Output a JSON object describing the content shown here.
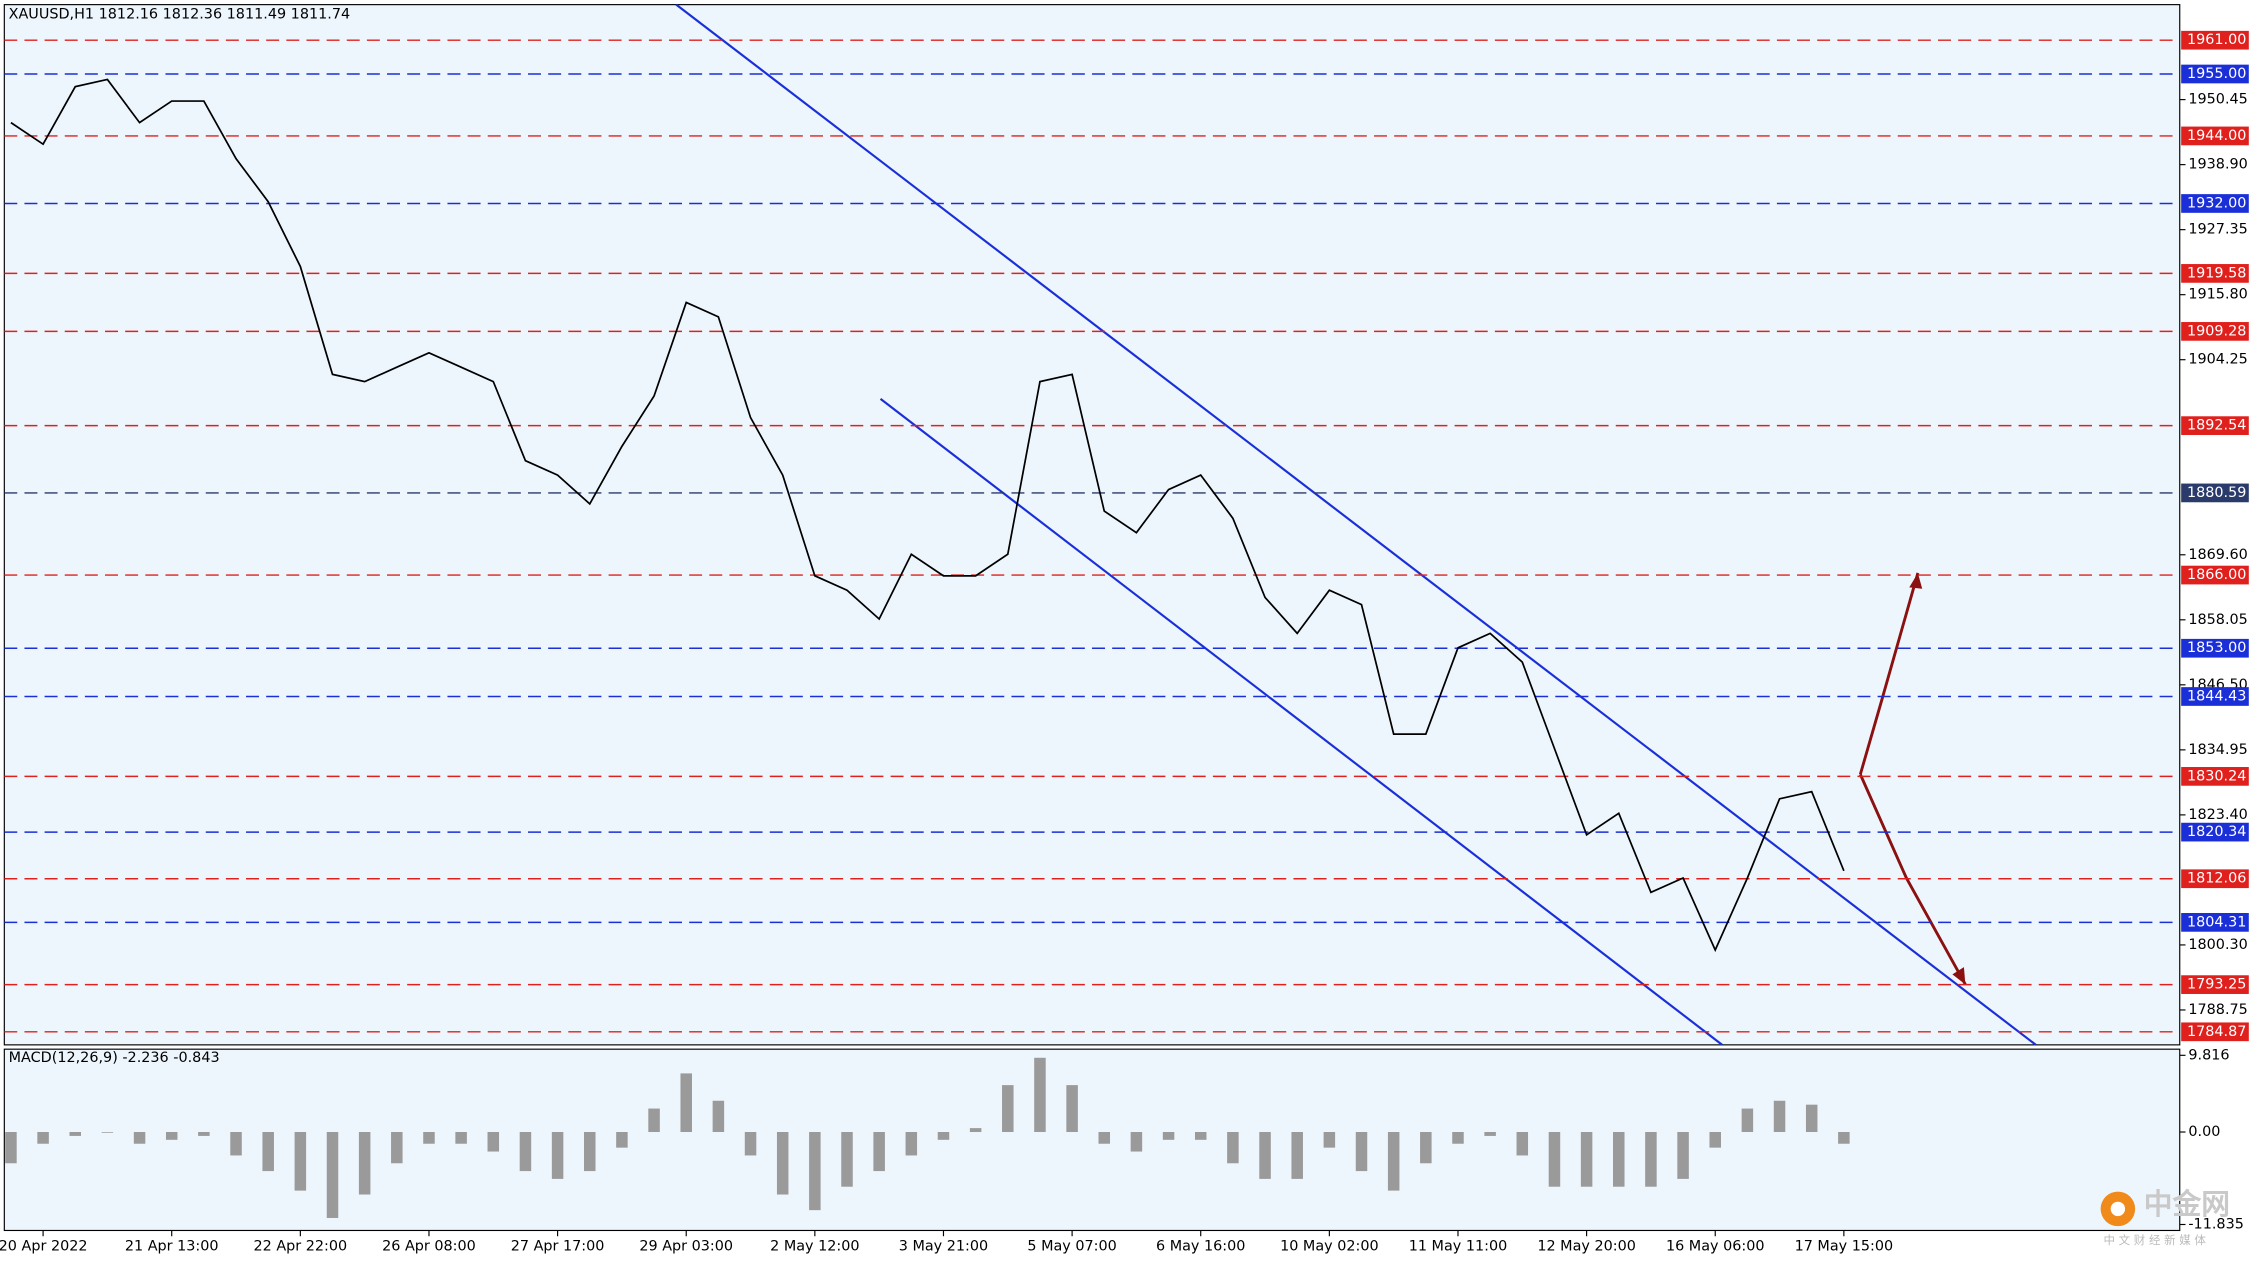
{
  "chart_data": [
    {
      "type": "line",
      "title": "XAUUSD,H1  1812.16 1812.36 1811.49 1811.74",
      "color": "#000000",
      "categories": [
        null,
        "20 Apr 2022",
        null,
        null,
        null,
        "21 Apr 13:00",
        null,
        null,
        null,
        "22 Apr 22:00",
        null,
        null,
        null,
        "26 Apr 08:00",
        null,
        null,
        null,
        "27 Apr 17:00",
        null,
        null,
        null,
        "29 Apr 03:00",
        null,
        null,
        null,
        "2 May 12:00",
        null,
        null,
        null,
        "3 May 21:00",
        null,
        null,
        null,
        "5 May 07:00",
        null,
        null,
        null,
        "6 May 16:00",
        null,
        null,
        null,
        "10 May 02:00",
        null,
        null,
        null,
        "11 May 11:00",
        null,
        null,
        null,
        "12 May 20:00",
        null,
        null,
        null,
        "16 May 06:00",
        null,
        null,
        null,
        "17 May 15:00"
      ],
      "values": [
        1946.36,
        1942.53,
        1952.75,
        1954.03,
        1946.36,
        1950.19,
        1950.19,
        1939.97,
        1932.31,
        1920.81,
        1901.64,
        1900.36,
        1902.92,
        1905.47,
        1902.92,
        1900.36,
        1886.31,
        1883.75,
        1878.64,
        1888.86,
        1897.8,
        1914.42,
        1911.86,
        1893.97,
        1883.75,
        1865.86,
        1863.31,
        1858.19,
        1869.69,
        1865.86,
        1865.86,
        1869.69,
        1900.36,
        1901.64,
        1877.36,
        1873.53,
        1881.19,
        1883.75,
        1876.08,
        1862.03,
        1855.64,
        1863.31,
        1860.75,
        1837.75,
        1837.75,
        1853.08,
        1855.64,
        1850.53,
        1835.19,
        1819.86,
        1823.69,
        1809.64,
        1812.19,
        1799.41,
        1812.19,
        1826.25,
        1827.53,
        1813.47
      ],
      "ylim": [
        1782.55,
        1967.32
      ],
      "yticks": [
        1950.45,
        {
          "value": 1938.9,
          "label": "1938.90"
        },
        1927.35,
        {
          "value": 1915.8,
          "label": "1915.80"
        },
        1904.25,
        {
          "value": 1869.6,
          "label": "1869.60"
        },
        1858.05,
        {
          "value": 1846.5,
          "label": "1846.50"
        },
        1834.95,
        {
          "value": 1823.4,
          "label": "1823.40"
        },
        {
          "value": 1800.3,
          "label": "1800.30"
        },
        1788.75
      ],
      "levels": [
        {
          "value": 1961,
          "label": "1961.00",
          "color": "#e0201c"
        },
        {
          "value": 1955,
          "label": "1955.00",
          "color": "#1a2fd8"
        },
        {
          "value": 1944,
          "label": "1944.00",
          "color": "#e0201c"
        },
        {
          "value": 1932,
          "label": "1932.00",
          "color": "#1a2fd8"
        },
        {
          "value": 1919.58,
          "label": "1919.58",
          "color": "#e0201c"
        },
        {
          "value": 1909.28,
          "label": "1909.28",
          "color": "#e0201c"
        },
        {
          "value": 1892.54,
          "label": "1892.54",
          "color": "#e0201c"
        },
        {
          "value": 1880.59,
          "label": "1880.59",
          "color": "#2a3a6a"
        },
        {
          "value": 1866,
          "label": "1866.00",
          "color": "#e0201c"
        },
        {
          "value": 1853,
          "label": "1853.00",
          "color": "#1a2fd8"
        },
        {
          "value": 1844.43,
          "label": "1844.43",
          "color": "#1a2fd8"
        },
        {
          "value": 1830.24,
          "label": "1830.24",
          "color": "#e0201c"
        },
        {
          "value": 1820.34,
          "label": "1820.34",
          "color": "#1a2fd8"
        },
        {
          "value": 1812.06,
          "label": "1812.06",
          "color": "#e0201c"
        },
        {
          "value": 1804.31,
          "label": "1804.31",
          "color": "#1a2fd8"
        },
        {
          "value": 1793.25,
          "label": "1793.25",
          "color": "#e0201c"
        },
        {
          "value": 1784.87,
          "label": "1784.87",
          "color": "#e0201c"
        }
      ]
    },
    {
      "type": "bar",
      "title": "MACD(12,26,9) -2.236 -0.843",
      "color": "#9a9a9a",
      "values": [
        -4,
        -1.5,
        -0.5,
        0,
        -1.5,
        -1,
        -0.5,
        -3,
        -5,
        -7.5,
        -11,
        -8,
        -4,
        -1.5,
        -1.5,
        -2.5,
        -5,
        -6,
        -5,
        -2,
        3,
        7.5,
        4,
        -3,
        -8,
        -10,
        -7,
        -5,
        -3,
        -1,
        0.5,
        6,
        9.5,
        6,
        -1.5,
        -2.5,
        -1,
        -1,
        -4,
        -6,
        -6,
        -2,
        -5,
        -7.5,
        -4,
        -1.5,
        -0.5,
        -3,
        -7,
        -7,
        -7,
        -7,
        -6,
        -2,
        3,
        4,
        3.5,
        -1.5
      ],
      "ylim": [
        -12.6,
        10.6
      ],
      "yticks": [
        9.816,
        {
          "value": 0,
          "label": "0.00"
        },
        -11.835
      ]
    }
  ],
  "watermark": {
    "name": "中金网",
    "tagline": "中 文 财 经 新 媒 体"
  }
}
